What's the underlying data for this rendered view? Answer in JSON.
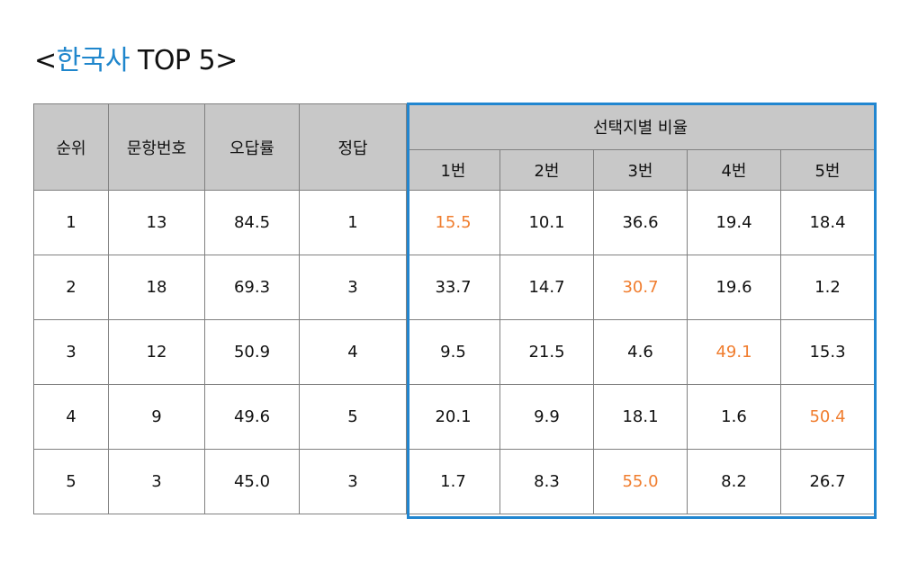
{
  "title": {
    "prefix": "<",
    "subject": "한국사",
    "suffix": " TOP 5>"
  },
  "colors": {
    "accent": "#1f86cc",
    "answer_highlight": "#f07d2e",
    "header_bg": "#c8c8c8",
    "box_border": "#2186d0"
  },
  "chart_data": {
    "type": "table",
    "title": "<한국사 TOP 5>",
    "columns": [
      "순위",
      "문항번호",
      "오답률",
      "정답"
    ],
    "group_header": "선택지별 비율",
    "option_columns": [
      "1번",
      "2번",
      "3번",
      "4번",
      "5번"
    ],
    "rows": [
      {
        "rank": "1",
        "question": "13",
        "wrong_rate": "84.5",
        "answer": "1",
        "options": [
          "15.5",
          "10.1",
          "36.6",
          "19.4",
          "18.4"
        ]
      },
      {
        "rank": "2",
        "question": "18",
        "wrong_rate": "69.3",
        "answer": "3",
        "options": [
          "33.7",
          "14.7",
          "30.7",
          "19.6",
          "1.2"
        ]
      },
      {
        "rank": "3",
        "question": "12",
        "wrong_rate": "50.9",
        "answer": "4",
        "options": [
          "9.5",
          "21.5",
          "4.6",
          "49.1",
          "15.3"
        ]
      },
      {
        "rank": "4",
        "question": "9",
        "wrong_rate": "49.6",
        "answer": "5",
        "options": [
          "20.1",
          "9.9",
          "18.1",
          "1.6",
          "50.4"
        ]
      },
      {
        "rank": "5",
        "question": "3",
        "wrong_rate": "45.0",
        "answer": "3",
        "options": [
          "1.7",
          "8.3",
          "55.0",
          "8.2",
          "26.7"
        ]
      }
    ]
  }
}
